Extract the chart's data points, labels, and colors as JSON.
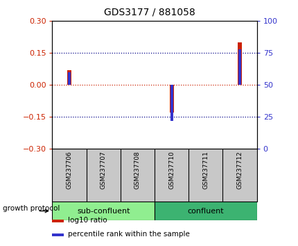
{
  "title": "GDS3177 / 881058",
  "samples": [
    "GSM237706",
    "GSM237707",
    "GSM237708",
    "GSM237710",
    "GSM237711",
    "GSM237712"
  ],
  "log10_ratio": [
    0.07,
    0.0,
    0.0,
    -0.13,
    0.0,
    0.2
  ],
  "percentile_rank": [
    60,
    50,
    50,
    22,
    50,
    78
  ],
  "groups": [
    {
      "label": "sub-confluent",
      "start": 0,
      "end": 3,
      "color": "#90EE90"
    },
    {
      "label": "confluent",
      "start": 3,
      "end": 6,
      "color": "#3CB371"
    }
  ],
  "group_label": "growth protocol",
  "ylim_left": [
    -0.3,
    0.3
  ],
  "ylim_right": [
    0,
    100
  ],
  "yticks_left": [
    -0.3,
    -0.15,
    0,
    0.15,
    0.3
  ],
  "yticks_right": [
    0,
    25,
    50,
    75,
    100
  ],
  "bar_color_red": "#CC2200",
  "bar_color_blue": "#3333CC",
  "dotted_line_color": "#000088",
  "zero_line_color": "#CC2200",
  "bg_color": "#FFFFFF",
  "tick_label_color_left": "#CC2200",
  "tick_label_color_right": "#3333CC",
  "legend_red_label": "log10 ratio",
  "legend_blue_label": "percentile rank within the sample",
  "red_bar_width": 0.12,
  "blue_bar_width": 0.08
}
